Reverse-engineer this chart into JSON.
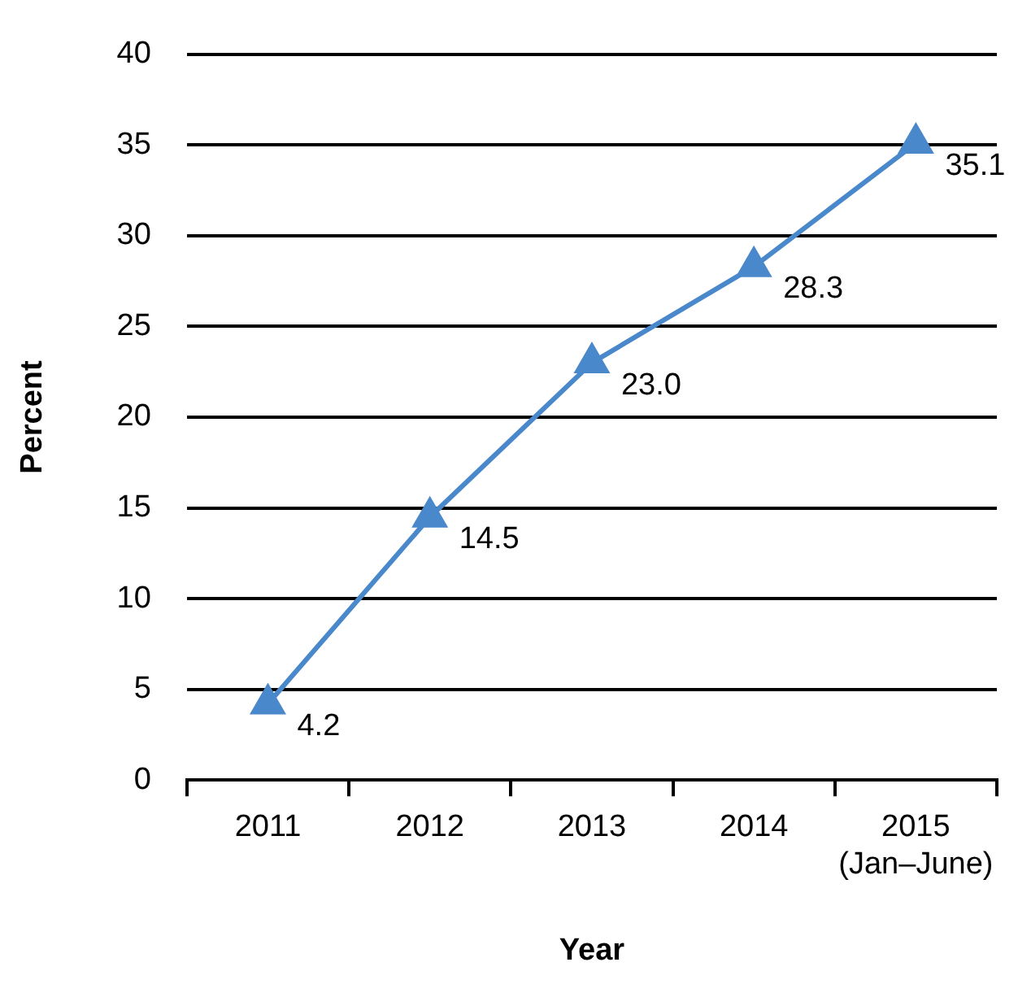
{
  "chart_data": {
    "type": "line",
    "xlabel": "Year",
    "ylabel": "Percent",
    "categories": [
      "2011",
      "2012",
      "2013",
      "2014",
      "2015\n(Jan–June)"
    ],
    "series": [
      {
        "color": "#4a88cc",
        "values": [
          4.2,
          14.5,
          23.0,
          28.3,
          35.1
        ]
      }
    ],
    "value_labels": [
      "4.2",
      "14.5",
      "23.0",
      "28.3",
      "35.1"
    ],
    "ylim": [
      0,
      40
    ],
    "yticks": [
      0,
      5,
      10,
      15,
      20,
      25,
      30,
      35,
      40
    ],
    "grid": "y",
    "legend": false,
    "marker": "triangle",
    "line_style": "solid"
  }
}
